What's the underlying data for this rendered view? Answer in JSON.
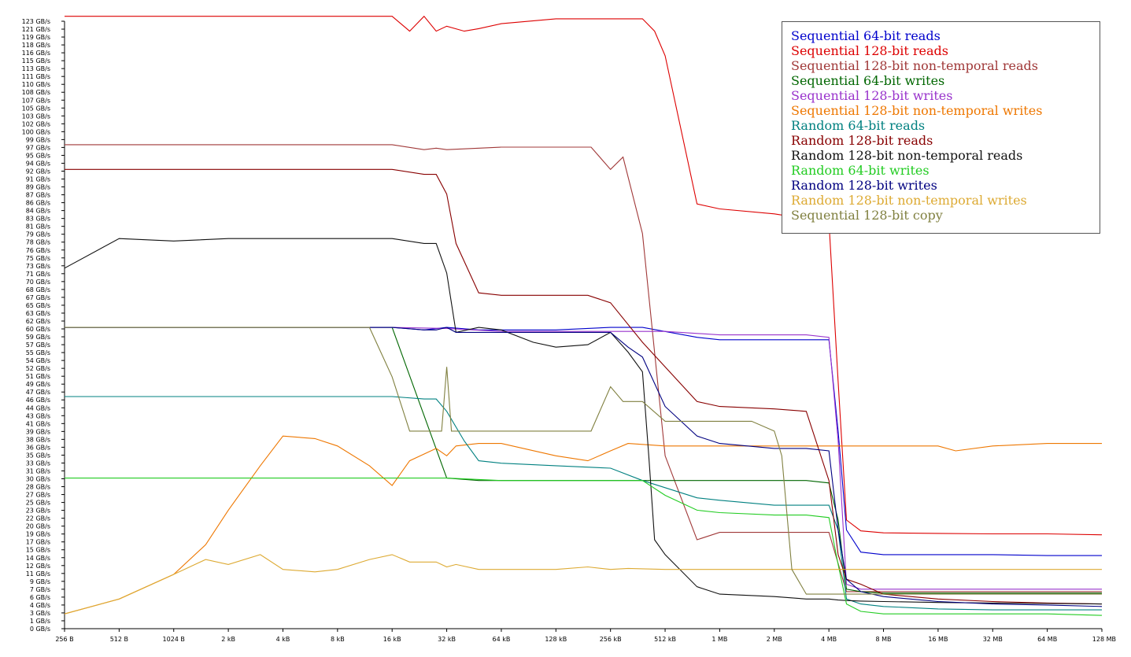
{
  "chart_data": {
    "type": "line",
    "title": "",
    "xlabel": "",
    "ylabel": "",
    "x_scale": "log2",
    "x_ticks": [
      "256 B",
      "512 B",
      "1024 B",
      "2 kB",
      "4 kB",
      "8 kB",
      "16 kB",
      "32 kB",
      "64 kB",
      "128 kB",
      "256 kB",
      "512 kB",
      "1 MB",
      "2 MB",
      "4 MB",
      "8 MB",
      "16 MB",
      "32 MB",
      "64 MB",
      "128 MB"
    ],
    "y_ticks": [
      "0 GB/s",
      "1 GB/s",
      "3 GB/s",
      "4 GB/s",
      "6 GB/s",
      "7 GB/s",
      "9 GB/s",
      "11 GB/s",
      "12 GB/s",
      "14 GB/s",
      "15 GB/s",
      "17 GB/s",
      "19 GB/s",
      "20 GB/s",
      "22 GB/s",
      "23 GB/s",
      "25 GB/s",
      "27 GB/s",
      "28 GB/s",
      "30 GB/s",
      "31 GB/s",
      "33 GB/s",
      "35 GB/s",
      "36 GB/s",
      "38 GB/s",
      "39 GB/s",
      "41 GB/s",
      "43 GB/s",
      "44 GB/s",
      "46 GB/s",
      "47 GB/s",
      "49 GB/s",
      "51 GB/s",
      "52 GB/s",
      "54 GB/s",
      "55 GB/s",
      "57 GB/s",
      "59 GB/s",
      "60 GB/s",
      "62 GB/s",
      "63 GB/s",
      "65 GB/s",
      "67 GB/s",
      "68 GB/s",
      "70 GB/s",
      "71 GB/s",
      "73 GB/s",
      "75 GB/s",
      "76 GB/s",
      "78 GB/s",
      "79 GB/s",
      "81 GB/s",
      "83 GB/s",
      "84 GB/s",
      "86 GB/s",
      "87 GB/s",
      "89 GB/s",
      "91 GB/s",
      "92 GB/s",
      "94 GB/s",
      "95 GB/s",
      "97 GB/s",
      "99 GB/s",
      "100 GB/s",
      "102 GB/s",
      "103 GB/s",
      "105 GB/s",
      "107 GB/s",
      "108 GB/s",
      "110 GB/s",
      "111 GB/s",
      "113 GB/s",
      "115 GB/s",
      "116 GB/s",
      "118 GB/s",
      "119 GB/s",
      "121 GB/s",
      "123 GB/s"
    ],
    "ylim": [
      0,
      123
    ],
    "grid": false,
    "legend_position": "top-right",
    "series": [
      {
        "name": "Sequential 64-bit reads",
        "color": "#0000cc",
        "x": [
          "256 B",
          "512 B",
          "1024 B",
          "2 kB",
          "4 kB",
          "8 kB",
          "16 kB",
          "24 kB",
          "32 kB",
          "48 kB",
          "64 kB",
          "128 kB",
          "256 kB",
          "384 kB",
          "768 kB",
          "1 MB",
          "2 MB",
          "3 MB",
          "4 MB",
          "4.5 MB",
          "5 MB",
          "6 MB",
          "8 MB",
          "16 MB",
          "32 MB",
          "64 MB",
          "128 MB"
        ],
        "y": [
          61,
          61,
          61,
          61,
          61,
          61,
          61,
          60.5,
          61,
          60.5,
          60.5,
          60.5,
          61,
          61,
          59,
          58.5,
          58.5,
          58.5,
          58.5,
          40,
          20,
          15.5,
          15,
          15,
          15,
          14.8,
          14.8
        ]
      },
      {
        "name": "Sequential 128-bit reads",
        "color": "#dd0000",
        "x": [
          "256 B",
          "512 B",
          "1024 B",
          "2 kB",
          "4 kB",
          "8 kB",
          "16 kB",
          "20 kB",
          "24 kB",
          "28 kB",
          "32 kB",
          "40 kB",
          "48 kB",
          "64 kB",
          "128 kB",
          "256 kB",
          "320 kB",
          "384 kB",
          "448 kB",
          "512 kB",
          "768 kB",
          "1 MB",
          "2 MB",
          "3 MB",
          "4 MB",
          "4.5 MB",
          "5 MB",
          "6 MB",
          "8 MB",
          "16 MB",
          "32 MB",
          "64 MB",
          "128 MB"
        ],
        "y": [
          124,
          124,
          124,
          124,
          124,
          124,
          124,
          121,
          124,
          121,
          122,
          121,
          121.5,
          122.5,
          123.5,
          123.5,
          123.5,
          123.5,
          121,
          116,
          86,
          85,
          84,
          83,
          82.5,
          50,
          22,
          19.8,
          19.4,
          19.3,
          19.2,
          19.2,
          19
        ]
      },
      {
        "name": "Sequential 128-bit non-temporal reads",
        "color": "#a03838",
        "x": [
          "256 B",
          "512 B",
          "1024 B",
          "2 kB",
          "4 kB",
          "8 kB",
          "16 kB",
          "24 kB",
          "28 kB",
          "32 kB",
          "64 kB",
          "128 kB",
          "200 kB",
          "256 kB",
          "300 kB",
          "384 kB",
          "512 kB",
          "768 kB",
          "1 MB",
          "2 MB",
          "4 MB",
          "5 MB",
          "6 MB",
          "8 MB",
          "16 MB",
          "32 MB",
          "64 MB",
          "128 MB"
        ],
        "y": [
          98,
          98,
          98,
          98,
          98,
          98,
          98,
          97,
          97.3,
          97,
          97.5,
          97.5,
          97.5,
          93,
          95.5,
          80,
          35,
          18,
          19.5,
          19.5,
          19.5,
          7.5,
          7.5,
          7.5,
          7.5,
          7.5,
          7.5,
          7.5
        ]
      },
      {
        "name": "Sequential 64-bit writes",
        "color": "#006600",
        "x": [
          "256 B",
          "512 B",
          "1024 B",
          "2 kB",
          "4 kB",
          "8 kB",
          "16 kB",
          "32 kB",
          "48 kB",
          "64 kB",
          "128 kB",
          "256 kB",
          "512 kB",
          "1 MB",
          "2 MB",
          "3 MB",
          "4 MB",
          "4.5 MB",
          "5 MB",
          "6 MB",
          "8 MB",
          "16 MB",
          "32 MB",
          "64 MB",
          "128 MB"
        ],
        "y": [
          61,
          61,
          61,
          61,
          61,
          61,
          61,
          30.5,
          30,
          30,
          30,
          30,
          30,
          30,
          30,
          30,
          29.5,
          22,
          8,
          7.5,
          7.2,
          7.2,
          7.2,
          7.2,
          7.2
        ]
      },
      {
        "name": "Sequential 128-bit writes",
        "color": "#9933cc",
        "x": [
          "256 B",
          "512 B",
          "1024 B",
          "2 kB",
          "4 kB",
          "8 kB",
          "16 kB",
          "32 kB",
          "64 kB",
          "128 kB",
          "256 kB",
          "512 kB",
          "1 MB",
          "2 MB",
          "3 MB",
          "4 MB",
          "4.5 MB",
          "5 MB",
          "6 MB",
          "8 MB",
          "16 MB",
          "32 MB",
          "64 MB",
          "128 MB"
        ],
        "y": [
          61,
          61,
          61,
          61,
          61,
          61,
          61,
          60.8,
          60.2,
          60.2,
          60.2,
          60.2,
          59.5,
          59.5,
          59.5,
          59,
          38,
          9,
          8,
          8,
          8,
          8,
          8,
          8
        ]
      },
      {
        "name": "Sequential 128-bit non-temporal writes",
        "color": "#ee7700",
        "x": [
          "256 B",
          "512 B",
          "1024 B",
          "1.5 kB",
          "2 kB",
          "3 kB",
          "4 kB",
          "6 kB",
          "8 kB",
          "12 kB",
          "16 kB",
          "20 kB",
          "28 kB",
          "32 kB",
          "36 kB",
          "48 kB",
          "64 kB",
          "128 kB",
          "192 kB",
          "256 kB",
          "320 kB",
          "512 kB",
          "1 MB",
          "2 MB",
          "4 MB",
          "8 MB",
          "16 MB",
          "20 MB",
          "32 MB",
          "64 MB",
          "128 MB"
        ],
        "y": [
          3,
          6,
          11,
          17,
          24,
          33,
          39,
          38.5,
          37,
          33,
          29,
          34,
          36.5,
          35,
          37,
          37.5,
          37.5,
          35,
          34,
          36,
          37.5,
          37,
          37,
          37,
          37,
          37,
          37,
          36,
          37,
          37.5,
          37.5
        ]
      },
      {
        "name": "Random 64-bit reads",
        "color": "#008080",
        "x": [
          "256 B",
          "512 B",
          "1024 B",
          "2 kB",
          "4 kB",
          "8 kB",
          "16 kB",
          "24 kB",
          "28 kB",
          "32 kB",
          "40 kB",
          "48 kB",
          "64 kB",
          "128 kB",
          "256 kB",
          "384 kB",
          "768 kB",
          "1 MB",
          "2 MB",
          "3 MB",
          "4 MB",
          "4.5 MB",
          "5 MB",
          "6 MB",
          "8 MB",
          "16 MB",
          "32 MB",
          "64 MB",
          "128 MB"
        ],
        "y": [
          47,
          47,
          47,
          47,
          47,
          47,
          47,
          46.5,
          46.5,
          44,
          38,
          34,
          33.5,
          33,
          32.5,
          30,
          26.5,
          26,
          25,
          25,
          25,
          20,
          6,
          5,
          4.5,
          4,
          3.8,
          3.8,
          3.8
        ]
      },
      {
        "name": "Random 128-bit reads",
        "color": "#880000",
        "x": [
          "256 B",
          "512 B",
          "1024 B",
          "2 kB",
          "4 kB",
          "8 kB",
          "16 kB",
          "24 kB",
          "28 kB",
          "32 kB",
          "36 kB",
          "48 kB",
          "64 kB",
          "128 kB",
          "192 kB",
          "256 kB",
          "384 kB",
          "768 kB",
          "1 MB",
          "2 MB",
          "3 MB",
          "4 MB",
          "4.5 MB",
          "5 MB",
          "6 MB",
          "8 MB",
          "16 MB",
          "32 MB",
          "64 MB",
          "128 MB"
        ],
        "y": [
          93,
          93,
          93,
          93,
          93,
          93,
          93,
          92,
          92,
          88,
          78,
          68,
          67.5,
          67.5,
          67.5,
          66,
          58,
          46,
          45,
          44.5,
          44,
          30,
          15,
          10,
          9,
          7,
          6,
          5.5,
          5.2,
          5
        ]
      },
      {
        "name": "Random 128-bit non-temporal reads",
        "color": "#111111",
        "x": [
          "256 B",
          "512 B",
          "1024 B",
          "2 kB",
          "4 kB",
          "8 kB",
          "16 kB",
          "24 kB",
          "28 kB",
          "32 kB",
          "36 kB",
          "48 kB",
          "64 kB",
          "96 kB",
          "128 kB",
          "192 kB",
          "256 kB",
          "320 kB",
          "384 kB",
          "416 kB",
          "448 kB",
          "512 kB",
          "768 kB",
          "1 MB",
          "2 MB",
          "3 MB",
          "3.5 MB",
          "4 MB",
          "4.5 MB",
          "5 MB",
          "6 MB",
          "8 MB",
          "16 MB",
          "32 MB",
          "64 MB",
          "128 MB"
        ],
        "y": [
          73,
          79,
          78.5,
          79,
          79,
          79,
          79,
          78,
          78,
          72,
          60,
          61,
          60.5,
          58,
          57,
          57.5,
          60,
          56,
          52,
          35,
          18,
          15,
          8.5,
          7,
          6.5,
          6,
          6,
          6,
          5.8,
          5.7,
          5.6,
          5.5,
          5.3,
          5.2,
          5.1,
          5
        ]
      },
      {
        "name": "Random 64-bit writes",
        "color": "#22cc22",
        "x": [
          "256 B",
          "512 B",
          "1024 B",
          "2 kB",
          "4 kB",
          "8 kB",
          "16 kB",
          "32 kB",
          "64 kB",
          "128 kB",
          "256 kB",
          "384 kB",
          "512 kB",
          "768 kB",
          "1 MB",
          "2 MB",
          "3 MB",
          "4 MB",
          "4.5 MB",
          "5 MB",
          "6 MB",
          "8 MB",
          "16 MB",
          "32 MB",
          "64 MB",
          "128 MB"
        ],
        "y": [
          30.5,
          30.5,
          30.5,
          30.5,
          30.5,
          30.5,
          30.5,
          30.5,
          30,
          30,
          30,
          30,
          27,
          24,
          23.5,
          23,
          23,
          22.5,
          13,
          5,
          3.5,
          3,
          3,
          3,
          3,
          2.7
        ]
      },
      {
        "name": "Random 128-bit writes",
        "color": "#000080",
        "x": [
          "256 B",
          "512 B",
          "1024 B",
          "2 kB",
          "4 kB",
          "8 kB",
          "16 kB",
          "24 kB",
          "28 kB",
          "32 kB",
          "36 kB",
          "48 kB",
          "64 kB",
          "128 kB",
          "192 kB",
          "256 kB",
          "320 kB",
          "384 kB",
          "512 kB",
          "768 kB",
          "1 MB",
          "2 MB",
          "3 MB",
          "4 MB",
          "4.5 MB",
          "5 MB",
          "6 MB",
          "8 MB",
          "16 MB",
          "32 MB",
          "64 MB",
          "128 MB"
        ],
        "y": [
          61,
          61,
          61,
          61,
          61,
          61,
          61,
          60.5,
          60.5,
          61,
          60,
          60,
          60,
          60,
          60,
          60,
          57,
          55,
          45,
          39,
          37.5,
          36.5,
          36.5,
          36,
          20,
          10,
          7.5,
          6.5,
          5.5,
          5,
          4.8,
          4.5
        ]
      },
      {
        "name": "Random 128-bit non-temporal writes",
        "color": "#ddaa33",
        "x": [
          "256 B",
          "512 B",
          "1024 B",
          "1.5 kB",
          "2 kB",
          "3 kB",
          "4 kB",
          "6 kB",
          "8 kB",
          "12 kB",
          "16 kB",
          "20 kB",
          "28 kB",
          "32 kB",
          "36 kB",
          "48 kB",
          "64 kB",
          "128 kB",
          "192 kB",
          "256 kB",
          "320 kB",
          "512 kB",
          "1 MB",
          "2 MB",
          "4 MB",
          "8 MB",
          "16 MB",
          "32 MB",
          "64 MB",
          "128 MB"
        ],
        "y": [
          3,
          6,
          11,
          14,
          13,
          15,
          12,
          11.5,
          12,
          14,
          15,
          13.5,
          13.5,
          12.5,
          13,
          12,
          12,
          12,
          12.5,
          12,
          12.2,
          12,
          12,
          12,
          12,
          12,
          12,
          12,
          12,
          12
        ]
      },
      {
        "name": "Sequential 128-bit copy",
        "color": "#808040",
        "x": [
          "256 B",
          "512 B",
          "1024 B",
          "2 kB",
          "4 kB",
          "8 kB",
          "12 kB",
          "16 kB",
          "20 kB",
          "28 kB",
          "30 kB",
          "32 kB",
          "34 kB",
          "40 kB",
          "64 kB",
          "128 kB",
          "200 kB",
          "256 kB",
          "300 kB",
          "384 kB",
          "512 kB",
          "1 MB",
          "1.5 MB",
          "2 MB",
          "2.2 MB",
          "2.5 MB",
          "3 MB",
          "4 MB",
          "8 MB",
          "16 MB",
          "32 MB",
          "64 MB",
          "128 MB"
        ],
        "y": [
          61,
          61,
          61,
          61,
          61,
          61,
          61,
          51,
          40,
          40,
          40,
          53,
          40,
          40,
          40,
          40,
          40,
          49,
          46,
          46,
          42,
          42,
          42,
          40,
          35,
          12,
          7,
          7,
          7,
          7,
          7,
          7,
          7
        ]
      }
    ]
  },
  "legend": [
    {
      "label": "Sequential 64-bit reads",
      "color": "#0000cc"
    },
    {
      "label": "Sequential 128-bit reads",
      "color": "#dd0000"
    },
    {
      "label": "Sequential 128-bit non-temporal reads",
      "color": "#a03838"
    },
    {
      "label": "Sequential 64-bit writes",
      "color": "#006600"
    },
    {
      "label": "Sequential 128-bit writes",
      "color": "#9933cc"
    },
    {
      "label": "Sequential 128-bit non-temporal writes",
      "color": "#ee7700"
    },
    {
      "label": "Random 64-bit reads",
      "color": "#008080"
    },
    {
      "label": "Random 128-bit reads",
      "color": "#880000"
    },
    {
      "label": "Random 128-bit non-temporal reads",
      "color": "#111111"
    },
    {
      "label": "Random 64-bit writes",
      "color": "#22cc22"
    },
    {
      "label": "Random 128-bit writes",
      "color": "#000080"
    },
    {
      "label": "Random 128-bit non-temporal writes",
      "color": "#ddaa33"
    },
    {
      "label": "Sequential 128-bit copy",
      "color": "#808040"
    }
  ]
}
